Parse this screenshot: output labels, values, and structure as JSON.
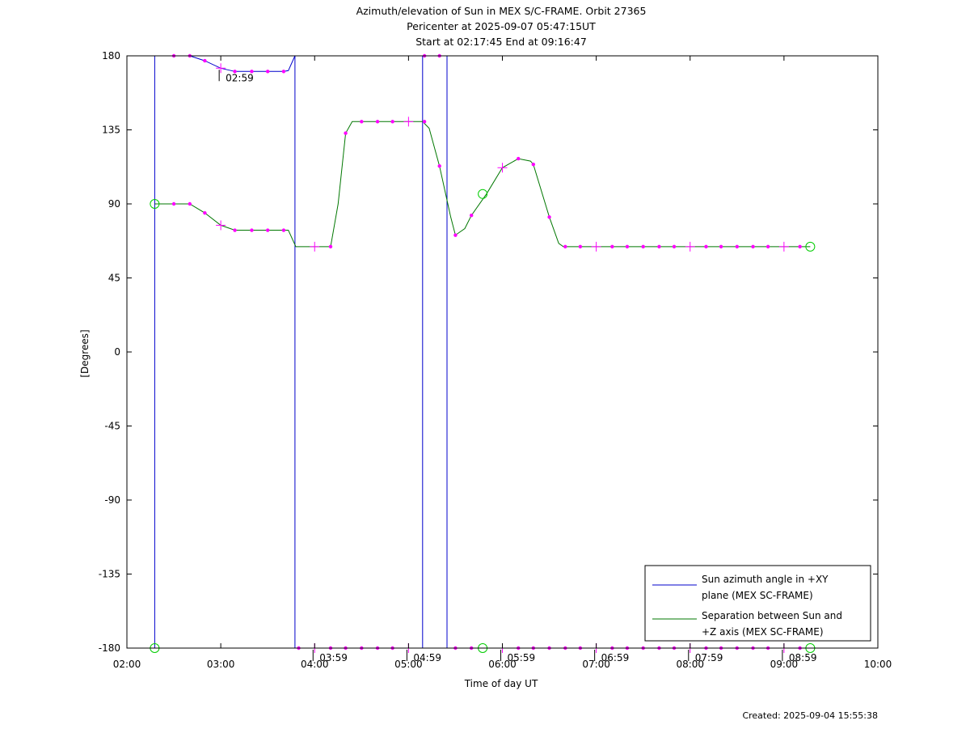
{
  "chart_data": {
    "type": "line",
    "title_lines": [
      "Azimuth/elevation of Sun in MEX S/C-FRAME.  Orbit 27365",
      "Pericenter at 2025-09-07 05:47:15UT",
      "Start at 02:17:45 End at 09:16:47"
    ],
    "xlabel": "Time of day UT",
    "ylabel": "[Degrees]",
    "xlim": [
      2.0,
      10.0
    ],
    "ylim": [
      -180,
      180
    ],
    "x_ticks": [
      {
        "v": 2,
        "label": "02:00"
      },
      {
        "v": 3,
        "label": "03:00"
      },
      {
        "v": 4,
        "label": "04:00"
      },
      {
        "v": 5,
        "label": "05:00"
      },
      {
        "v": 6,
        "label": "06:00"
      },
      {
        "v": 7,
        "label": "07:00"
      },
      {
        "v": 8,
        "label": "08:00"
      },
      {
        "v": 9,
        "label": "09:00"
      },
      {
        "v": 10,
        "label": "10:00"
      }
    ],
    "y_ticks": [
      180,
      135,
      90,
      45,
      0,
      -45,
      -90,
      -135,
      -180
    ],
    "legend": {
      "placement": "bottom-right",
      "entries": [
        {
          "lines": [
            "Sun azimuth angle in +XY",
            "plane (MEX SC-FRAME)"
          ],
          "color": "#0000cc"
        },
        {
          "lines": [
            "Separation between Sun and",
            "+Z axis (MEX SC-FRAME)"
          ],
          "color": "#007700"
        }
      ]
    },
    "series": [
      {
        "name": "Sun azimuth angle in +XY plane (MEX SC-FRAME)",
        "color": "#0000cc",
        "points": [
          [
            2.296,
            -180
          ],
          [
            2.296,
            180
          ],
          [
            2.5,
            180
          ],
          [
            2.67,
            180
          ],
          [
            2.83,
            177
          ],
          [
            3.0,
            172.5
          ],
          [
            3.15,
            170.5
          ],
          [
            3.3,
            170.5
          ],
          [
            3.5,
            170.5
          ],
          [
            3.67,
            170.5
          ],
          [
            3.72,
            171
          ],
          [
            3.79,
            180
          ],
          [
            3.79,
            18
          ],
          [
            3.79,
            -180
          ],
          [
            4.0,
            -180
          ],
          [
            4.5,
            -180
          ],
          [
            5.0,
            -180
          ],
          [
            5.15,
            -180
          ],
          [
            5.15,
            180
          ],
          [
            5.41,
            180
          ],
          [
            5.41,
            -180
          ],
          [
            6.0,
            -180
          ],
          [
            6.5,
            -180
          ],
          [
            7.0,
            -180
          ],
          [
            7.5,
            -180
          ],
          [
            8.0,
            -180
          ],
          [
            8.5,
            -180
          ],
          [
            9.0,
            -180
          ],
          [
            9.28,
            -180
          ]
        ]
      },
      {
        "name": "Separation between Sun and +Z axis (MEX SC-FRAME)",
        "color": "#007700",
        "points": [
          [
            2.296,
            90
          ],
          [
            2.5,
            90
          ],
          [
            2.67,
            90
          ],
          [
            2.83,
            84.5
          ],
          [
            3.0,
            77
          ],
          [
            3.15,
            74
          ],
          [
            3.5,
            74
          ],
          [
            3.72,
            74
          ],
          [
            3.8,
            64
          ],
          [
            4.0,
            64
          ],
          [
            4.17,
            64
          ],
          [
            4.25,
            90
          ],
          [
            4.33,
            133
          ],
          [
            4.4,
            140
          ],
          [
            4.67,
            140
          ],
          [
            5.0,
            140
          ],
          [
            5.15,
            140
          ],
          [
            5.22,
            136
          ],
          [
            5.33,
            113
          ],
          [
            5.45,
            82
          ],
          [
            5.5,
            71
          ],
          [
            5.6,
            75
          ],
          [
            5.67,
            83
          ],
          [
            5.83,
            96
          ],
          [
            6.0,
            112
          ],
          [
            6.17,
            117.5
          ],
          [
            6.3,
            116
          ],
          [
            6.33,
            114
          ],
          [
            6.5,
            82
          ],
          [
            6.6,
            66
          ],
          [
            6.65,
            64
          ],
          [
            7.0,
            64
          ],
          [
            8.0,
            64
          ],
          [
            9.0,
            64
          ],
          [
            9.28,
            64
          ]
        ]
      }
    ],
    "markers": {
      "dots_sep": [
        [
          2.5,
          90
        ],
        [
          2.67,
          90
        ],
        [
          2.83,
          84.5
        ],
        [
          3.15,
          74
        ],
        [
          3.33,
          74
        ],
        [
          3.5,
          74
        ],
        [
          3.67,
          74
        ],
        [
          4.17,
          64
        ],
        [
          4.33,
          133
        ],
        [
          4.5,
          140
        ],
        [
          4.67,
          140
        ],
        [
          4.83,
          140
        ],
        [
          5.17,
          140
        ],
        [
          5.33,
          113
        ],
        [
          5.5,
          71
        ],
        [
          5.67,
          83
        ],
        [
          6.17,
          117.5
        ],
        [
          6.33,
          114
        ],
        [
          6.5,
          82
        ],
        [
          6.67,
          64
        ],
        [
          6.83,
          64
        ],
        [
          7.17,
          64
        ],
        [
          7.33,
          64
        ],
        [
          7.5,
          64
        ],
        [
          7.67,
          64
        ],
        [
          7.83,
          64
        ],
        [
          8.17,
          64
        ],
        [
          8.33,
          64
        ],
        [
          8.5,
          64
        ],
        [
          8.67,
          64
        ],
        [
          8.83,
          64
        ],
        [
          9.17,
          64
        ]
      ],
      "dots_az": [
        [
          2.5,
          180
        ],
        [
          2.67,
          180
        ],
        [
          2.83,
          177
        ],
        [
          3.15,
          170.5
        ],
        [
          3.33,
          170.5
        ],
        [
          3.5,
          170.5
        ],
        [
          3.67,
          170.5
        ],
        [
          3.83,
          -180
        ],
        [
          4.17,
          -180
        ],
        [
          4.33,
          -180
        ],
        [
          4.5,
          -180
        ],
        [
          4.67,
          -180
        ],
        [
          4.83,
          -180
        ],
        [
          5.17,
          180
        ],
        [
          5.33,
          180
        ],
        [
          5.5,
          -180
        ],
        [
          5.67,
          -180
        ],
        [
          6.17,
          -180
        ],
        [
          6.33,
          -180
        ],
        [
          6.5,
          -180
        ],
        [
          6.67,
          -180
        ],
        [
          6.83,
          -180
        ],
        [
          7.17,
          -180
        ],
        [
          7.33,
          -180
        ],
        [
          7.5,
          -180
        ],
        [
          7.67,
          -180
        ],
        [
          7.83,
          -180
        ],
        [
          8.17,
          -180
        ],
        [
          8.33,
          -180
        ],
        [
          8.5,
          -180
        ],
        [
          8.67,
          -180
        ],
        [
          8.83,
          -180
        ],
        [
          9.17,
          -180
        ]
      ],
      "hour_crosses": [
        [
          3.0,
          77
        ],
        [
          3.0,
          172.5
        ],
        [
          4.0,
          64
        ],
        [
          5.0,
          140
        ],
        [
          6.0,
          112
        ],
        [
          7.0,
          64
        ],
        [
          8.0,
          64
        ],
        [
          9.0,
          64
        ],
        [
          4.0,
          -180
        ],
        [
          5.0,
          -180
        ],
        [
          6.0,
          -180
        ],
        [
          7.0,
          -180
        ],
        [
          8.0,
          -180
        ],
        [
          9.0,
          -180
        ]
      ],
      "circles": [
        [
          2.296,
          90
        ],
        [
          2.296,
          -180
        ],
        [
          5.79,
          96
        ],
        [
          5.79,
          -180
        ],
        [
          9.28,
          64
        ],
        [
          9.28,
          -180
        ]
      ],
      "time_labels": [
        {
          "x": 2.983,
          "y": 172.5,
          "label": "02:59"
        },
        {
          "x": 3.983,
          "y": -180,
          "label": "03:59"
        },
        {
          "x": 4.983,
          "y": -180,
          "label": "04:59"
        },
        {
          "x": 5.983,
          "y": -180,
          "label": "05:59"
        },
        {
          "x": 6.983,
          "y": -180,
          "label": "06:59"
        },
        {
          "x": 7.983,
          "y": -180,
          "label": "07:59"
        },
        {
          "x": 8.983,
          "y": -180,
          "label": "08:59"
        }
      ]
    }
  },
  "footer": {
    "created": "Created: 2025-09-04 15:55:38"
  },
  "colors": {
    "dots": "#ff00ff",
    "circles": "#00cc00",
    "axes": "#000000"
  }
}
